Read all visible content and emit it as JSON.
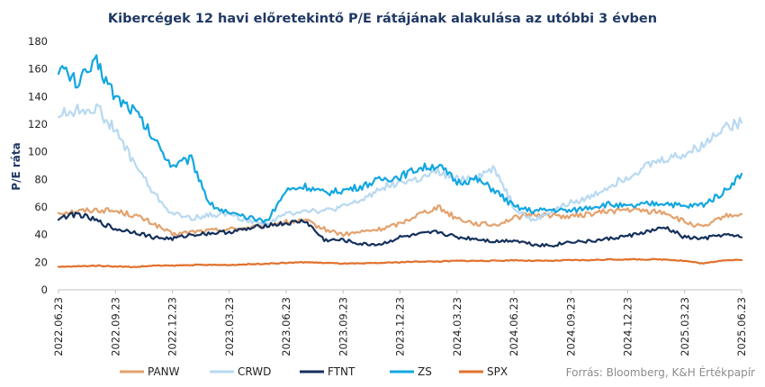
{
  "chart_data": {
    "type": "line",
    "title": "Kibercégek 12 havi előretekintő P/E rátájának alakulása az utóbbi 3 évben",
    "ylabel": "P/E ráta",
    "xlabel": "",
    "ylim": [
      0,
      180
    ],
    "yticks": [
      "0",
      "20",
      "40",
      "60",
      "80",
      "100",
      "120",
      "140",
      "160",
      "180"
    ],
    "xticks": [
      "2022.06.23",
      "2022.09.23",
      "2022.12.23",
      "2023.03.23",
      "2023.06.23",
      "2023.09.23",
      "2023.12.23",
      "2024.03.23",
      "2024.06.23",
      "2024.09.23",
      "2024.12.23",
      "2025.03.23",
      "2025.06.23"
    ],
    "grid": false,
    "legend_position": "bottom",
    "x": [
      "2022.06.23",
      "2022.07.23",
      "2022.08.23",
      "2022.09.23",
      "2022.10.23",
      "2022.11.23",
      "2022.12.23",
      "2023.01.23",
      "2023.02.23",
      "2023.03.23",
      "2023.04.23",
      "2023.05.23",
      "2023.06.23",
      "2023.07.23",
      "2023.08.23",
      "2023.09.23",
      "2023.10.23",
      "2023.11.23",
      "2023.12.23",
      "2024.01.23",
      "2024.02.23",
      "2024.03.23",
      "2024.04.23",
      "2024.05.23",
      "2024.06.23",
      "2024.07.23",
      "2024.08.23",
      "2024.09.23",
      "2024.10.23",
      "2024.11.23",
      "2024.12.23",
      "2025.01.23",
      "2025.02.23",
      "2025.03.23",
      "2025.04.23",
      "2025.05.23",
      "2025.06.23"
    ],
    "series": [
      {
        "name": "PANW",
        "color": "#e3a26e",
        "values": [
          56,
          57,
          58,
          57,
          54,
          48,
          40,
          42,
          43,
          44,
          45,
          47,
          49,
          50,
          44,
          40,
          42,
          44,
          48,
          55,
          60,
          52,
          48,
          47,
          52,
          55,
          54,
          53,
          55,
          57,
          58,
          57,
          56,
          49,
          45,
          53,
          55
        ]
      },
      {
        "name": "CRWD",
        "color": "#b8d9f1",
        "values": [
          127,
          130,
          132,
          115,
          92,
          70,
          55,
          52,
          54,
          55,
          50,
          48,
          55,
          58,
          57,
          60,
          65,
          74,
          78,
          80,
          85,
          80,
          82,
          88,
          60,
          50,
          57,
          63,
          67,
          75,
          82,
          90,
          95,
          98,
          105,
          118,
          121
        ]
      },
      {
        "name": "FTNT",
        "color": "#14305c",
        "values": [
          52,
          55,
          50,
          44,
          42,
          38,
          37,
          40,
          41,
          42,
          44,
          47,
          48,
          50,
          36,
          36,
          33,
          33,
          38,
          40,
          42,
          38,
          37,
          35,
          36,
          33,
          32,
          35,
          35,
          37,
          39,
          42,
          45,
          38,
          37,
          40,
          38
        ]
      },
      {
        "name": "ZS",
        "color": "#12a6e0",
        "values": [
          162,
          150,
          165,
          140,
          130,
          110,
          90,
          95,
          62,
          55,
          52,
          50,
          72,
          75,
          70,
          72,
          75,
          80,
          82,
          88,
          90,
          78,
          80,
          72,
          60,
          57,
          58,
          57,
          60,
          62,
          60,
          62,
          63,
          60,
          62,
          70,
          84
        ]
      },
      {
        "name": "SPX",
        "color": "#e2702b",
        "values": [
          16.5,
          17,
          17.5,
          17,
          16.5,
          17.5,
          17.5,
          18,
          18,
          18,
          18.5,
          19,
          19.5,
          20,
          19.5,
          19,
          19,
          19.5,
          20,
          20.5,
          20.5,
          21,
          21,
          21,
          21.5,
          21,
          21,
          21.5,
          21.5,
          22,
          22,
          22,
          22,
          21,
          19,
          21.5,
          21.5
        ]
      }
    ]
  },
  "source": "Forrás: Bloomberg, K&H Értékpapír"
}
